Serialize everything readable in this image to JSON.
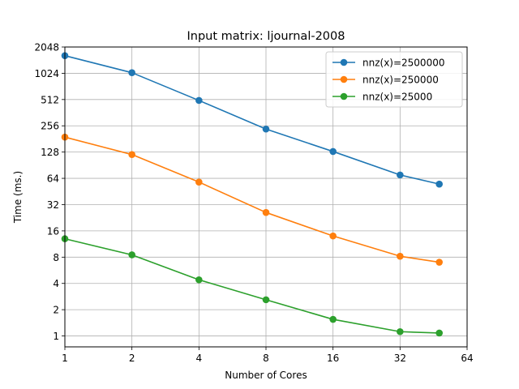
{
  "chart_data": {
    "type": "line",
    "title": "Input matrix: ljournal-2008",
    "xlabel": "Number of Cores",
    "ylabel": "Time (ms.)",
    "xscale": "log2",
    "yscale": "log2",
    "xlim": [
      1,
      64
    ],
    "ylim": [
      0.75,
      2048
    ],
    "xticks": [
      1,
      2,
      4,
      8,
      16,
      32,
      64
    ],
    "yticks": [
      1,
      2,
      4,
      8,
      16,
      32,
      64,
      128,
      256,
      512,
      1024,
      2048
    ],
    "xtick_labels": [
      "1",
      "2",
      "4",
      "8",
      "16",
      "32",
      "64"
    ],
    "ytick_labels": [
      "1",
      "2",
      "4",
      "8",
      "16",
      "32",
      "64",
      "128",
      "256",
      "512",
      "1024",
      "2048"
    ],
    "grid": true,
    "legend_position": "top-right",
    "x": [
      1,
      2,
      4,
      8,
      16,
      32,
      48
    ],
    "series": [
      {
        "name": "nnz(x)=2500000",
        "color": "#1f77b4",
        "values": [
          1630,
          1040,
          500,
          235,
          130,
          70,
          55
        ]
      },
      {
        "name": "nnz(x)=250000",
        "color": "#ff7f0e",
        "values": [
          190,
          120,
          58,
          26,
          14,
          8.2,
          7.0
        ]
      },
      {
        "name": "nnz(x)=25000",
        "color": "#2ca02c",
        "values": [
          13.0,
          8.5,
          4.4,
          2.6,
          1.55,
          1.12,
          1.08
        ]
      }
    ]
  }
}
